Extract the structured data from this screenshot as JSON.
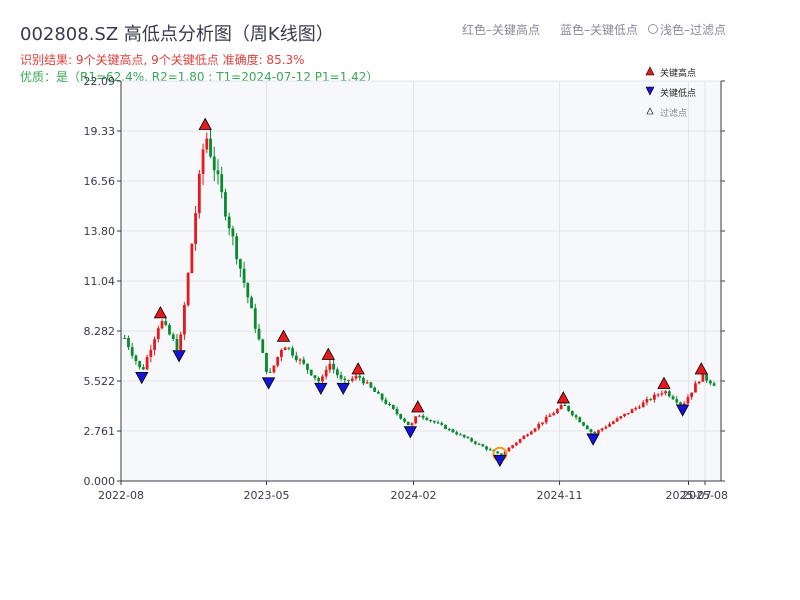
{
  "title": "002808.SZ 高低点分析图（周K线图）",
  "result_text": "识别结果: 9个关键高点, 9个关键低点  准确度: 85.3%",
  "quality_text": "优质：是（R1=62.4%, R2=1.80 ; T1=2024-07-12 P1=1.42）",
  "top_notes": [
    "红色–关键高点",
    "蓝色–关键低点",
    "浅色–过滤点"
  ],
  "colors": {
    "up": "#e8191c",
    "down": "#0a8a2e",
    "high_marker": "#e8191c",
    "low_marker": "#1414d8",
    "filtered_ring": "#f29a1a",
    "plot_bg": "#f6f8fb"
  },
  "chart_data": {
    "type": "candlestick",
    "ylim": [
      0,
      22.09
    ],
    "yticks": [
      "0.000",
      "2.761",
      "5.522",
      "8.282",
      "11.04",
      "13.80",
      "16.56",
      "19.33",
      "22.09"
    ],
    "x_range": [
      "2022-08-01",
      "2025-08-31"
    ],
    "xticks": [
      {
        "date": "2022-08-01",
        "label": "2022-08"
      },
      {
        "date": "2023-05-01",
        "label": "2023-05"
      },
      {
        "date": "2024-02-01",
        "label": "2024-02"
      },
      {
        "date": "2024-11-01",
        "label": "2024-11"
      },
      {
        "date": "2025-07-01",
        "label": "2025-07"
      },
      {
        "date": "2025-08-01",
        "label": "2025-08"
      }
    ],
    "legend": [
      "关键高点",
      "关键低点",
      "过滤点"
    ],
    "legend_position": "top-right",
    "key_highs": [
      {
        "date": "2022-10-14",
        "value": 8.9
      },
      {
        "date": "2023-01-06",
        "value": 19.3
      },
      {
        "date": "2023-06-02",
        "value": 7.6
      },
      {
        "date": "2023-08-25",
        "value": 6.6
      },
      {
        "date": "2023-10-20",
        "value": 5.8
      },
      {
        "date": "2024-02-09",
        "value": 3.7
      },
      {
        "date": "2024-11-08",
        "value": 4.2
      },
      {
        "date": "2025-05-16",
        "value": 5.0
      },
      {
        "date": "2025-07-25",
        "value": 5.8
      }
    ],
    "key_lows": [
      {
        "date": "2022-09-09",
        "value": 6.0
      },
      {
        "date": "2022-11-18",
        "value": 7.2
      },
      {
        "date": "2023-05-05",
        "value": 5.7
      },
      {
        "date": "2023-08-11",
        "value": 5.4
      },
      {
        "date": "2023-09-22",
        "value": 5.4
      },
      {
        "date": "2024-01-26",
        "value": 3.0
      },
      {
        "date": "2024-07-12",
        "value": 1.42
      },
      {
        "date": "2025-01-03",
        "value": 2.6
      },
      {
        "date": "2025-06-20",
        "value": 4.2
      }
    ],
    "filtered_points": [
      {
        "date": "2024-07-12",
        "value": 1.42
      }
    ]
  }
}
